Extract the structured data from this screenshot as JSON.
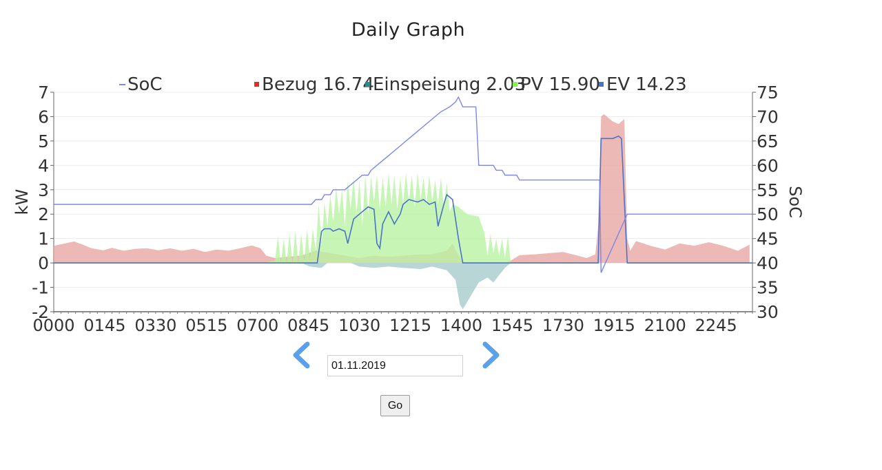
{
  "page": {
    "title": "Daily Graph"
  },
  "controls": {
    "date_value": "01.11.2019",
    "go_label": "Go",
    "prev_icon": "chevron-left-icon",
    "next_icon": "chevron-right-icon",
    "arrow_color": "#5aa0ea"
  },
  "chart_data": {
    "type": "area",
    "ylabel": "kW",
    "y2label": "SoC",
    "ylim": [
      -2,
      7
    ],
    "y2lim": [
      30,
      75
    ],
    "yticks": [
      -2,
      -1,
      0,
      1,
      2,
      3,
      4,
      5,
      6,
      7
    ],
    "y2ticks": [
      30,
      35,
      40,
      45,
      50,
      55,
      60,
      65,
      70,
      75
    ],
    "xlim": [
      0,
      24
    ],
    "xticks": [
      {
        "x": 0,
        "label": "0000"
      },
      {
        "x": 1.75,
        "label": "0145"
      },
      {
        "x": 3.5,
        "label": "0330"
      },
      {
        "x": 5.25,
        "label": "0515"
      },
      {
        "x": 7,
        "label": "0700"
      },
      {
        "x": 8.75,
        "label": "0845"
      },
      {
        "x": 10.5,
        "label": "1030"
      },
      {
        "x": 12.25,
        "label": "1215"
      },
      {
        "x": 14,
        "label": "1400"
      },
      {
        "x": 15.75,
        "label": "1545"
      },
      {
        "x": 17.5,
        "label": "1730"
      },
      {
        "x": 19.25,
        "label": "1915"
      },
      {
        "x": 21,
        "label": "2100"
      },
      {
        "x": 22.75,
        "label": "2245"
      }
    ],
    "grid": true,
    "legend": [
      {
        "label": "SoC",
        "value": "",
        "color": "#7b86e6",
        "marker": "line"
      },
      {
        "label": "Bezug",
        "value": "16.74",
        "color": "#e03020",
        "marker": "square"
      },
      {
        "label": "Einspeisung",
        "value": "2.03",
        "color": "#2e8b8b",
        "marker": "square"
      },
      {
        "label": "PV",
        "value": "15.90",
        "color": "#88ee55",
        "marker": "square"
      },
      {
        "label": "EV",
        "value": "14.23",
        "color": "#4a72c8",
        "marker": "square"
      }
    ],
    "series": [
      {
        "name": "Bezug",
        "axis": "left",
        "style": "area",
        "color": "#e8a8a4",
        "points": [
          [
            0,
            0.7
          ],
          [
            0.3,
            0.78
          ],
          [
            0.7,
            0.88
          ],
          [
            1,
            0.75
          ],
          [
            1.3,
            0.6
          ],
          [
            1.7,
            0.52
          ],
          [
            2,
            0.62
          ],
          [
            2.4,
            0.5
          ],
          [
            2.8,
            0.58
          ],
          [
            3.2,
            0.6
          ],
          [
            3.6,
            0.52
          ],
          [
            4,
            0.6
          ],
          [
            4.4,
            0.5
          ],
          [
            4.8,
            0.58
          ],
          [
            5.2,
            0.45
          ],
          [
            5.6,
            0.55
          ],
          [
            6,
            0.5
          ],
          [
            6.4,
            0.6
          ],
          [
            6.8,
            0.72
          ],
          [
            7.1,
            0.6
          ],
          [
            7.3,
            0.3
          ],
          [
            7.6,
            0.2
          ],
          [
            8,
            0.25
          ],
          [
            8.5,
            0.3
          ],
          [
            9,
            0.5
          ],
          [
            9.5,
            0.4
          ],
          [
            10,
            0.3
          ],
          [
            10.5,
            0.2
          ],
          [
            11,
            0.3
          ],
          [
            11.5,
            0.25
          ],
          [
            12,
            0.3
          ],
          [
            12.5,
            0.35
          ],
          [
            13,
            0.35
          ],
          [
            13.5,
            0.5
          ],
          [
            13.7,
            0.8
          ],
          [
            13.9,
            0.3
          ],
          [
            14.1,
            0
          ],
          [
            15.5,
            0
          ],
          [
            15.7,
            0.1
          ],
          [
            16,
            0.32
          ],
          [
            16.5,
            0.35
          ],
          [
            17,
            0.4
          ],
          [
            17.5,
            0.45
          ],
          [
            18,
            0.3
          ],
          [
            18.3,
            0.2
          ],
          [
            18.6,
            0.35
          ],
          [
            18.7,
            1.5
          ],
          [
            18.8,
            6.0
          ],
          [
            18.9,
            6.1
          ],
          [
            19.2,
            5.8
          ],
          [
            19.4,
            5.7
          ],
          [
            19.6,
            5.9
          ],
          [
            19.7,
            1.0
          ],
          [
            19.8,
            0.5
          ],
          [
            20,
            0.9
          ],
          [
            20.5,
            0.7
          ],
          [
            21,
            0.55
          ],
          [
            21.5,
            0.8
          ],
          [
            22,
            0.7
          ],
          [
            22.5,
            0.85
          ],
          [
            23,
            0.7
          ],
          [
            23.5,
            0.5
          ],
          [
            23.9,
            0.75
          ]
        ]
      },
      {
        "name": "PV",
        "axis": "left",
        "style": "area",
        "color": "#b9f2a2",
        "points": [
          [
            7.2,
            0
          ],
          [
            7.6,
            0.1
          ],
          [
            7.7,
            1.1
          ],
          [
            7.8,
            0
          ],
          [
            7.9,
            1.0
          ],
          [
            8,
            0
          ],
          [
            8.1,
            1.2
          ],
          [
            8.2,
            0
          ],
          [
            8.3,
            1.3
          ],
          [
            8.4,
            0
          ],
          [
            8.5,
            1.2
          ],
          [
            8.6,
            0.1
          ],
          [
            8.7,
            1.4
          ],
          [
            8.8,
            0.2
          ],
          [
            8.9,
            1.4
          ],
          [
            9,
            0.5
          ],
          [
            9.1,
            2.4
          ],
          [
            9.2,
            0.8
          ],
          [
            9.3,
            2.5
          ],
          [
            9.4,
            1.5
          ],
          [
            9.5,
            2.8
          ],
          [
            9.6,
            1.6
          ],
          [
            9.7,
            3.1
          ],
          [
            9.8,
            2.0
          ],
          [
            9.9,
            3.0
          ],
          [
            10,
            1.5
          ],
          [
            10.1,
            3.4
          ],
          [
            10.2,
            2.2
          ],
          [
            10.3,
            3.5
          ],
          [
            10.4,
            2.0
          ],
          [
            10.5,
            3.4
          ],
          [
            10.6,
            1.5
          ],
          [
            10.7,
            3.6
          ],
          [
            10.8,
            2.0
          ],
          [
            10.9,
            3.5
          ],
          [
            11,
            2.5
          ],
          [
            11.1,
            3.6
          ],
          [
            11.2,
            2.2
          ],
          [
            11.3,
            3.5
          ],
          [
            11.4,
            2.3
          ],
          [
            11.5,
            3.7
          ],
          [
            11.6,
            2.4
          ],
          [
            11.7,
            3.6
          ],
          [
            11.8,
            2.2
          ],
          [
            11.9,
            3.5
          ],
          [
            12,
            2.4
          ],
          [
            12.1,
            3.7
          ],
          [
            12.2,
            2.5
          ],
          [
            12.3,
            3.6
          ],
          [
            12.4,
            2.3
          ],
          [
            12.5,
            3.7
          ],
          [
            12.6,
            2.6
          ],
          [
            12.7,
            3.5
          ],
          [
            12.8,
            2.4
          ],
          [
            12.9,
            3.6
          ],
          [
            13,
            2.5
          ],
          [
            13.1,
            3.4
          ],
          [
            13.2,
            2.4
          ],
          [
            13.3,
            3.5
          ],
          [
            13.4,
            2.3
          ],
          [
            13.5,
            3.3
          ],
          [
            13.6,
            2.1
          ],
          [
            13.7,
            2.4
          ],
          [
            13.9,
            2.3
          ],
          [
            14.2,
            2.0
          ],
          [
            14.6,
            1.9
          ],
          [
            14.8,
            1.2
          ],
          [
            14.9,
            0.3
          ],
          [
            15,
            1.2
          ],
          [
            15.1,
            0.4
          ],
          [
            15.2,
            1.0
          ],
          [
            15.3,
            0.3
          ],
          [
            15.4,
            1.0
          ],
          [
            15.5,
            0.2
          ],
          [
            15.6,
            1.1
          ],
          [
            15.7,
            0
          ],
          [
            15.9,
            0
          ]
        ]
      },
      {
        "name": "Einspeisung",
        "axis": "left",
        "style": "area",
        "color": "#a7cccd",
        "points": [
          [
            8.5,
            0
          ],
          [
            8.8,
            -0.15
          ],
          [
            9.2,
            -0.2
          ],
          [
            9.4,
            0
          ],
          [
            10.2,
            0
          ],
          [
            10.5,
            -0.15
          ],
          [
            11,
            -0.2
          ],
          [
            11.5,
            -0.15
          ],
          [
            12,
            -0.2
          ],
          [
            12.6,
            -0.25
          ],
          [
            13,
            -0.15
          ],
          [
            13.5,
            -0.3
          ],
          [
            13.8,
            -0.7
          ],
          [
            13.95,
            -1.7
          ],
          [
            14.05,
            -1.9
          ],
          [
            14.3,
            -1.4
          ],
          [
            14.6,
            -0.8
          ],
          [
            14.9,
            -0.6
          ],
          [
            15.1,
            -0.8
          ],
          [
            15.3,
            -0.5
          ],
          [
            15.5,
            -0.2
          ],
          [
            15.7,
            0
          ]
        ]
      },
      {
        "name": "EV",
        "axis": "left",
        "style": "line",
        "color": "#4a72c8",
        "points": [
          [
            0,
            0
          ],
          [
            9.05,
            0
          ],
          [
            9.2,
            1.3
          ],
          [
            9.3,
            1.4
          ],
          [
            9.5,
            1.4
          ],
          [
            9.6,
            1.3
          ],
          [
            9.8,
            1.4
          ],
          [
            10,
            1.3
          ],
          [
            10.1,
            0.8
          ],
          [
            10.3,
            1.8
          ],
          [
            10.5,
            2.0
          ],
          [
            10.8,
            2.3
          ],
          [
            11,
            2.2
          ],
          [
            11.1,
            0.8
          ],
          [
            11.2,
            0.6
          ],
          [
            11.3,
            1.6
          ],
          [
            11.5,
            2.1
          ],
          [
            11.7,
            1.6
          ],
          [
            11.9,
            2.0
          ],
          [
            12,
            2.4
          ],
          [
            12.2,
            2.6
          ],
          [
            12.5,
            2.5
          ],
          [
            12.7,
            2.6
          ],
          [
            12.9,
            2.4
          ],
          [
            13.1,
            2.5
          ],
          [
            13.2,
            1.5
          ],
          [
            13.4,
            2.4
          ],
          [
            13.5,
            2.8
          ],
          [
            13.7,
            2.6
          ],
          [
            13.9,
            1.0
          ],
          [
            14.05,
            0
          ],
          [
            18.7,
            0
          ],
          [
            18.8,
            5.1
          ],
          [
            19.2,
            5.1
          ],
          [
            19.4,
            5.2
          ],
          [
            19.5,
            5.1
          ],
          [
            19.7,
            0
          ],
          [
            24,
            0
          ]
        ]
      },
      {
        "name": "SoC",
        "axis": "right",
        "style": "line",
        "color": "#7b86e6",
        "points": [
          [
            0,
            52
          ],
          [
            8.85,
            52
          ],
          [
            9,
            53
          ],
          [
            9.2,
            53
          ],
          [
            9.3,
            54
          ],
          [
            9.5,
            54
          ],
          [
            9.6,
            55
          ],
          [
            10,
            55
          ],
          [
            10.2,
            56
          ],
          [
            10.4,
            57
          ],
          [
            10.6,
            58
          ],
          [
            10.8,
            58
          ],
          [
            10.9,
            59
          ],
          [
            11.1,
            60
          ],
          [
            11.3,
            61
          ],
          [
            11.5,
            62
          ],
          [
            11.7,
            63
          ],
          [
            11.9,
            64
          ],
          [
            12.1,
            65
          ],
          [
            12.3,
            66
          ],
          [
            12.5,
            67
          ],
          [
            12.7,
            68
          ],
          [
            12.9,
            69
          ],
          [
            13.1,
            70
          ],
          [
            13.3,
            71
          ],
          [
            13.6,
            72
          ],
          [
            13.8,
            73
          ],
          [
            13.9,
            74
          ],
          [
            14.05,
            72
          ],
          [
            14.5,
            72
          ],
          [
            14.6,
            60
          ],
          [
            15.1,
            60
          ],
          [
            15.2,
            59
          ],
          [
            15.4,
            59
          ],
          [
            15.5,
            58
          ],
          [
            15.9,
            58
          ],
          [
            16,
            57
          ],
          [
            18.75,
            57
          ],
          [
            18.8,
            38
          ],
          [
            19.7,
            50
          ],
          [
            19.75,
            50
          ],
          [
            24,
            50
          ]
        ]
      }
    ]
  }
}
